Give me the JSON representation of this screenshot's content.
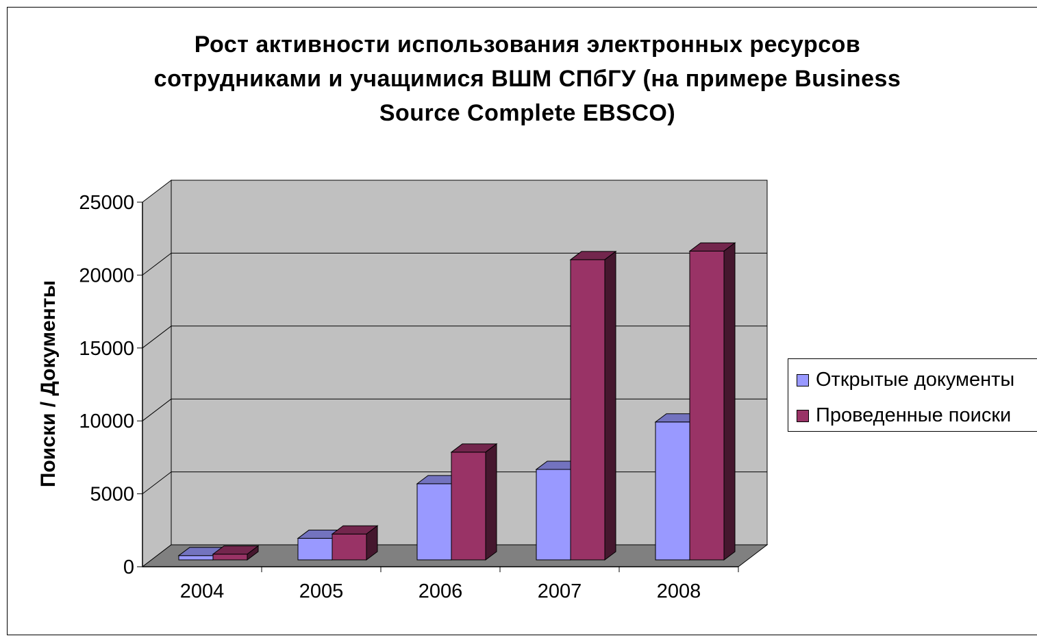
{
  "chart_data": {
    "type": "bar",
    "title_lines": [
      "Рост активности использования электронных ресурсов",
      "сотрудниками и учащимися ВШМ СПбГУ (на примере Business",
      "Source Complete EBSCO)"
    ],
    "xlabel": "",
    "ylabel": "Поиски / Документы",
    "categories": [
      "2004",
      "2005",
      "2006",
      "2007",
      "2008"
    ],
    "series": [
      {
        "name": "Открытые документы",
        "values": [
          300,
          1500,
          5300,
          6300,
          9600
        ],
        "color": "#9999ff"
      },
      {
        "name": "Проведенные поиски",
        "values": [
          400,
          1800,
          7500,
          20900,
          21500
        ],
        "color": "#993366"
      }
    ],
    "ylim": [
      0,
      25000
    ],
    "yticks": [
      "0",
      "5000",
      "10000",
      "15000",
      "20000",
      "25000"
    ],
    "grid": true,
    "legend_position": "right",
    "wall_color": "#c0c0c0",
    "floor_color": "#808080"
  }
}
